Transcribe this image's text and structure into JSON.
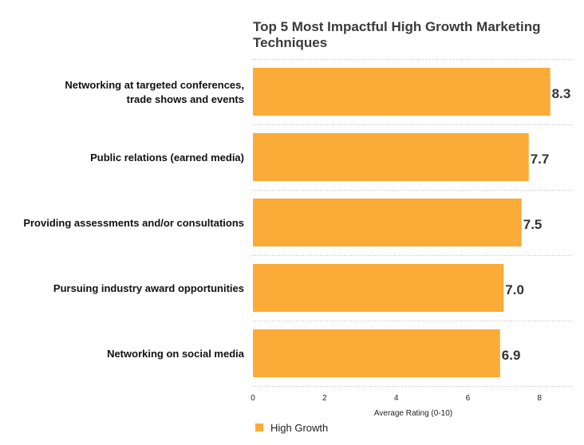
{
  "chart_data": {
    "type": "bar",
    "orientation": "horizontal",
    "title": "Top 5 Most Impactful High Growth Marketing Techniques",
    "categories": [
      "Networking at targeted conferences, trade shows and events",
      "Public relations (earned media)",
      "Providing assessments and/or consultations",
      "Pursuing industry award opportunities",
      "Networking on social media"
    ],
    "category_label_lines": [
      [
        "Networking at targeted conferences,",
        "trade shows and events"
      ],
      [
        "Public relations (earned media)"
      ],
      [
        "Providing assessments and/or consultations"
      ],
      [
        "Pursuing industry award opportunities"
      ],
      [
        "Networking on social media"
      ]
    ],
    "series": [
      {
        "name": "High Growth",
        "values": [
          8.3,
          7.7,
          7.5,
          7.0,
          6.9
        ],
        "value_labels": [
          "8.3",
          "7.7",
          "7.5",
          "7.0",
          "6.9"
        ],
        "color": "#fbab37"
      }
    ],
    "xlabel": "Average Rating (0-10)",
    "ylabel": "",
    "xlim": [
      0,
      9
    ],
    "x_ticks": [
      0,
      2,
      4,
      6,
      8
    ],
    "x_tick_labels": [
      "0",
      "2",
      "4",
      "6",
      "8"
    ],
    "grid": "horizontal dotted separators",
    "gridline_color": "#bbbbbb",
    "legend_position": "bottom-left",
    "text_color": "#111111",
    "value_label_color": "#333333"
  }
}
